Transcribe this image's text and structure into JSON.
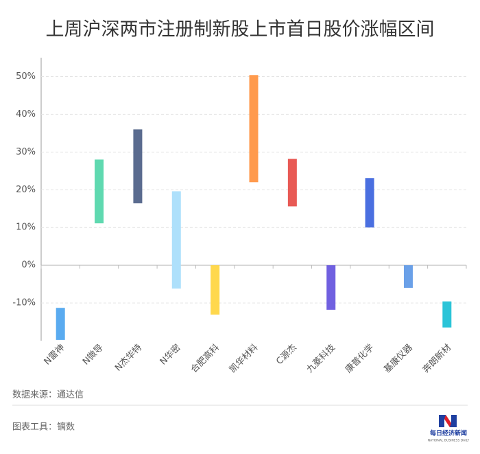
{
  "chart_data": {
    "type": "range_bar",
    "title": "上周沪深两市注册制新股上市首日股价涨幅区间",
    "categories": [
      "N雷神",
      "N微导",
      "N杰华特",
      "N华密",
      "合肥高科",
      "凯华材料",
      "C源杰",
      "九菱科技",
      "康普化学",
      "基康仪器",
      "奔朗新材"
    ],
    "high": [
      -11.3,
      28.0,
      36.0,
      19.6,
      0,
      50.4,
      28.2,
      0,
      23.1,
      0,
      -9.6
    ],
    "low": [
      -19.8,
      11.1,
      16.4,
      -6.2,
      -13.1,
      22.0,
      15.6,
      -11.8,
      10.0,
      -6.0,
      -16.5
    ],
    "colors": [
      "#5aabf0",
      "#5fd9b0",
      "#5a6b8f",
      "#aee0fb",
      "#ffd84d",
      "#ff9a4d",
      "#e85a55",
      "#7060e0",
      "#4a6fe0",
      "#6aa0e8",
      "#2bc4d8"
    ],
    "ylim": [
      -20,
      55
    ],
    "yticks": [
      {
        "value": -10,
        "label": "-10%"
      },
      {
        "value": 0,
        "label": "0%"
      },
      {
        "value": 10,
        "label": "10%"
      },
      {
        "value": 20,
        "label": "20%"
      },
      {
        "value": 30,
        "label": "30%"
      },
      {
        "value": 40,
        "label": "40%"
      },
      {
        "value": 50,
        "label": "50%"
      }
    ],
    "grid": true,
    "source": "数据来源：通达信",
    "tool": "图表工具：镝数",
    "logo": {
      "name": "每日经济新闻",
      "subtitle": "NATIONAL BUSINESS DAILY"
    }
  }
}
